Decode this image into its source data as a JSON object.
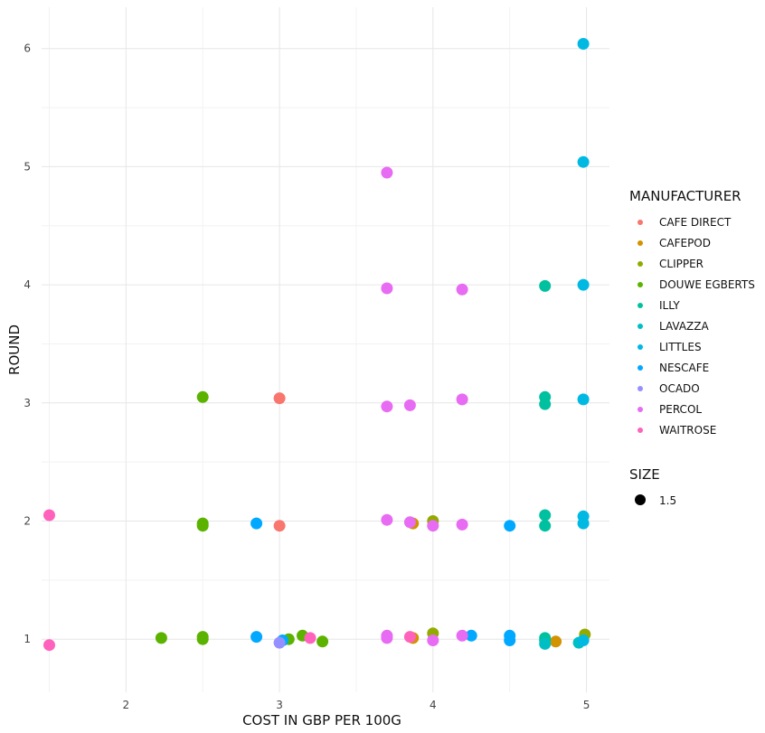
{
  "chart_data": {
    "type": "scatter",
    "xlabel": "COST IN GBP PER 100G",
    "ylabel": "ROUND",
    "xlim": [
      1.45,
      5.15
    ],
    "ylim": [
      0.55,
      6.35
    ],
    "x_ticks": [
      2,
      3,
      4,
      5
    ],
    "y_ticks": [
      1,
      2,
      3,
      4,
      5,
      6
    ],
    "x_tick_labels": [
      "2",
      "3",
      "4",
      "5"
    ],
    "y_tick_labels": [
      "1",
      "2",
      "3",
      "4",
      "5",
      "6"
    ],
    "grid": true,
    "legend_position": "right",
    "legend_title": "MANUFACTURER",
    "size_legend_title": "SIZE",
    "size_legend_value": "1.5",
    "series": [
      {
        "name": "CAFE DIRECT",
        "color": "#F8766D",
        "points": [
          [
            3.0,
            3.04
          ],
          [
            3.0,
            1.96
          ]
        ]
      },
      {
        "name": "CAFEPOD",
        "color": "#D39200",
        "points": [
          [
            3.87,
            1.98
          ],
          [
            3.87,
            1.01
          ],
          [
            4.8,
            0.98
          ]
        ]
      },
      {
        "name": "CLIPPER",
        "color": "#93AA00",
        "points": [
          [
            4.0,
            2.0
          ],
          [
            4.0,
            1.05
          ],
          [
            4.99,
            1.04
          ]
        ]
      },
      {
        "name": "DOUWE EGBERTS",
        "color": "#5BB300",
        "points": [
          [
            2.5,
            3.05
          ],
          [
            2.5,
            1.98
          ],
          [
            2.5,
            1.96
          ],
          [
            2.23,
            1.01
          ],
          [
            2.5,
            1.02
          ],
          [
            2.5,
            1.0
          ],
          [
            3.06,
            1.0
          ],
          [
            3.15,
            1.03
          ],
          [
            3.28,
            0.98
          ]
        ]
      },
      {
        "name": "ILLY",
        "color": "#00C19F",
        "points": [
          [
            4.73,
            3.99
          ],
          [
            4.73,
            3.05
          ],
          [
            4.73,
            2.99
          ],
          [
            4.73,
            2.05
          ],
          [
            4.73,
            1.96
          ],
          [
            4.73,
            1.01
          ],
          [
            4.73,
            0.99
          ]
        ]
      },
      {
        "name": "LAVAZZA",
        "color": "#00BFC4",
        "points": [
          [
            4.73,
            0.96
          ],
          [
            4.95,
            0.97
          ]
        ]
      },
      {
        "name": "LITTLES",
        "color": "#00B9E3",
        "points": [
          [
            4.98,
            6.04
          ],
          [
            4.98,
            5.04
          ],
          [
            4.98,
            4.0
          ],
          [
            4.98,
            3.03
          ],
          [
            4.98,
            2.04
          ],
          [
            4.98,
            1.98
          ],
          [
            4.98,
            0.99
          ]
        ]
      },
      {
        "name": "NESCAFE",
        "color": "#00A9FF",
        "points": [
          [
            2.85,
            1.98
          ],
          [
            2.85,
            1.02
          ],
          [
            3.02,
            0.99
          ],
          [
            4.25,
            1.03
          ],
          [
            4.5,
            1.96
          ],
          [
            4.5,
            1.03
          ],
          [
            4.5,
            0.99
          ]
        ]
      },
      {
        "name": "OCADO",
        "color": "#9590FF",
        "points": [
          [
            3.0,
            0.97
          ]
        ]
      },
      {
        "name": "PERCOL",
        "color": "#E76BF3",
        "points": [
          [
            3.7,
            4.95
          ],
          [
            3.7,
            3.97
          ],
          [
            4.19,
            3.96
          ],
          [
            3.7,
            2.97
          ],
          [
            3.85,
            2.98
          ],
          [
            4.19,
            3.03
          ],
          [
            3.7,
            2.01
          ],
          [
            3.85,
            1.99
          ],
          [
            4.0,
            1.96
          ],
          [
            4.19,
            1.97
          ],
          [
            3.7,
            1.03
          ],
          [
            3.7,
            1.01
          ],
          [
            4.0,
            0.99
          ],
          [
            4.19,
            1.03
          ]
        ]
      },
      {
        "name": "WAITROSE",
        "color": "#FF62BC",
        "points": [
          [
            1.5,
            2.05
          ],
          [
            1.5,
            0.95
          ],
          [
            3.2,
            1.01
          ],
          [
            3.85,
            1.02
          ]
        ]
      }
    ]
  }
}
